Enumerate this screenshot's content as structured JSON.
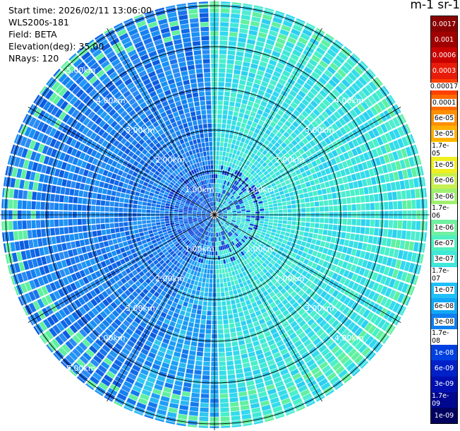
{
  "info": {
    "start_time": "Start time: 2026/02/11 13:06:00",
    "instrument": "WLS200s-181",
    "field": "Field: BETA",
    "elevation": "Elevation(deg): 35.00",
    "nrays": "NRays: 120"
  },
  "colorbar": {
    "title": "m-1 sr-1",
    "labels": [
      "0.0017",
      "0.001",
      "0.0006",
      "0.0003",
      "0.00017",
      "0.0001",
      "6e-05",
      "3e-05",
      "1.7e-05",
      "1e-05",
      "6e-06",
      "3e-06",
      "1.7e-06",
      "1e-06",
      "6e-07",
      "3e-07",
      "1.7e-07",
      "1e-07",
      "6e-08",
      "3e-08",
      "1.7e-08",
      "1e-08",
      "6e-09",
      "3e-09",
      "1.7e-09",
      "1e-09"
    ],
    "colors": [
      "#8b0000",
      "#a00000",
      "#c80000",
      "#e81c0a",
      "#ff4000",
      "#ff6a00",
      "#ff9000",
      "#ffb000",
      "#ffd000",
      "#f0f020",
      "#c8f050",
      "#a0f070",
      "#80f080",
      "#70f0a0",
      "#50f0c0",
      "#40e8d8",
      "#30d8f0",
      "#20c0f8",
      "#10a8f8",
      "#1080f0",
      "#1060e8",
      "#0040e0",
      "#0020c8",
      "#0010b0",
      "#000890",
      "#000060"
    ],
    "text_white": [
      true,
      true,
      true,
      true,
      false,
      false,
      false,
      false,
      false,
      false,
      false,
      false,
      false,
      false,
      false,
      false,
      false,
      false,
      false,
      false,
      false,
      true,
      true,
      true,
      true,
      true
    ]
  },
  "range_labels": {
    "r1": "1.00km",
    "r2": "2.00km",
    "r3": "3.00km",
    "r4": "4.00km",
    "r5": "5.00km"
  }
}
